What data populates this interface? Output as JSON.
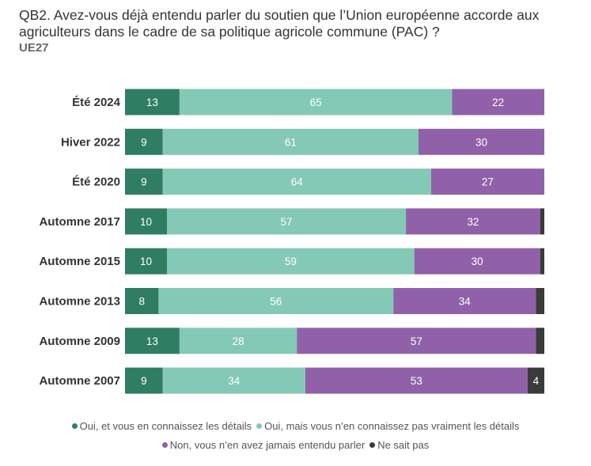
{
  "header": {
    "title": "QB2. Avez-vous déjà entendu parler du soutien que l’Union européenne accorde aux agriculteurs dans le cadre de sa politique agricole commune (PAC) ?",
    "subtitle": "UE27"
  },
  "chart_data": {
    "type": "bar",
    "orientation": "horizontal",
    "stacked": true,
    "percent_scale": true,
    "categories": [
      "Été 2024",
      "Hiver 2022",
      "Été 2020",
      "Automne 2017",
      "Automne 2015",
      "Automne 2013",
      "Automne 2009",
      "Automne 2007"
    ],
    "series": [
      {
        "name": "Oui, et vous en connaissez les détails",
        "color": "#2f7d63",
        "values": [
          13,
          9,
          9,
          10,
          10,
          8,
          13,
          9
        ]
      },
      {
        "name": "Oui, mais vous n’en connaissez pas vraiment les détails",
        "color": "#84c9b5",
        "values": [
          65,
          61,
          64,
          57,
          59,
          56,
          28,
          34
        ]
      },
      {
        "name": "Non, vous n’en avez jamais entendu parler",
        "color": "#9061a8",
        "values": [
          22,
          30,
          27,
          32,
          30,
          34,
          57,
          53
        ]
      },
      {
        "name": "Ne sait pas",
        "color": "#3a3a3a",
        "values": [
          0,
          0,
          0,
          1,
          1,
          2,
          2,
          4
        ]
      }
    ],
    "data_labels_shown": [
      [
        "13",
        "9",
        "9",
        "10",
        "10",
        "8",
        "13",
        "9"
      ],
      [
        "65",
        "61",
        "64",
        "57",
        "59",
        "56",
        "28",
        "34"
      ],
      [
        "22",
        "30",
        "27",
        "32",
        "30",
        "34",
        "57",
        "53"
      ],
      [
        "",
        "",
        "",
        "",
        "",
        "",
        "",
        "4"
      ]
    ],
    "legend_position": "bottom",
    "grid": false
  },
  "legend_rows": [
    [
      0,
      1
    ],
    [
      2,
      3
    ]
  ]
}
